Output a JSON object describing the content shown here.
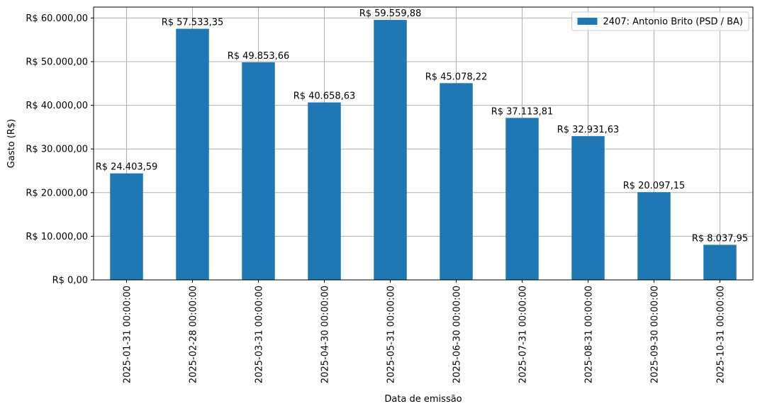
{
  "chart_data": {
    "type": "bar",
    "categories": [
      "2025-01-31 00:00:00",
      "2025-02-28 00:00:00",
      "2025-03-31 00:00:00",
      "2025-04-30 00:00:00",
      "2025-05-31 00:00:00",
      "2025-06-30 00:00:00",
      "2025-07-31 00:00:00",
      "2025-08-31 00:00:00",
      "2025-09-30 00:00:00",
      "2025-10-31 00:00:00"
    ],
    "series": [
      {
        "name": "2407: Antonio Brito (PSD / BA)",
        "values": [
          24403.59,
          57533.35,
          49853.66,
          40658.63,
          59559.88,
          45078.22,
          37113.81,
          32931.63,
          20097.15,
          8037.95
        ],
        "data_labels": [
          "R$ 24.403,59",
          "R$ 57.533,35",
          "R$ 49.853,66",
          "R$ 40.658,63",
          "R$ 59.559,88",
          "R$ 45.078,22",
          "R$ 37.113,81",
          "R$ 32.931,63",
          "R$ 20.097,15",
          "R$ 8.037,95"
        ],
        "color": "#1f77b4"
      }
    ],
    "xlabel": "Data de emissão",
    "ylabel": "Gasto (R$)",
    "ylim": [
      0,
      62500
    ],
    "yticks": [
      0,
      10000,
      20000,
      30000,
      40000,
      50000,
      60000
    ],
    "ytick_labels": [
      "R$ 0,00",
      "R$ 10.000,00",
      "R$ 20.000,00",
      "R$ 30.000,00",
      "R$ 40.000,00",
      "R$ 50.000,00",
      "R$ 60.000,00"
    ],
    "grid": true,
    "legend_position": "top-right"
  }
}
